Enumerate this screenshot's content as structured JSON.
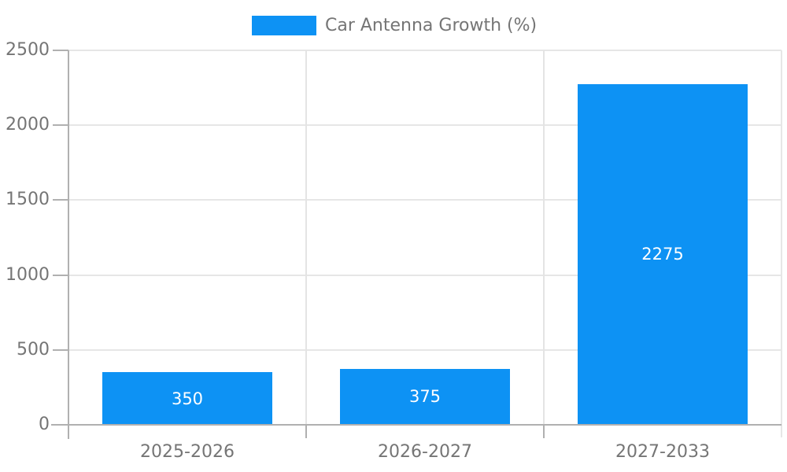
{
  "legend": {
    "label": "Car Antenna Growth (%)",
    "swatch_color": "#0d92f4"
  },
  "chart_data": {
    "type": "bar",
    "title": "Car Antenna Growth (%)",
    "categories": [
      "2025-2026",
      "2026-2027",
      "2027-2033"
    ],
    "values": [
      350,
      375,
      2275
    ],
    "bar_labels": [
      "350",
      "375",
      "2275"
    ],
    "xlabel": "",
    "ylabel": "",
    "ylim": [
      0,
      2500
    ],
    "yticks": [
      0,
      500,
      1000,
      1500,
      2000,
      2500
    ],
    "grid": true,
    "legend_position": "top-center",
    "value_labels": "centered-inside-white",
    "colors": {
      "bar": "#0d92f4",
      "axis_text": "#757575",
      "value_text": "#ffffff",
      "gridline": "#e6e6e6",
      "axis_line": "#b0b0b0",
      "background": "#ffffff"
    }
  }
}
